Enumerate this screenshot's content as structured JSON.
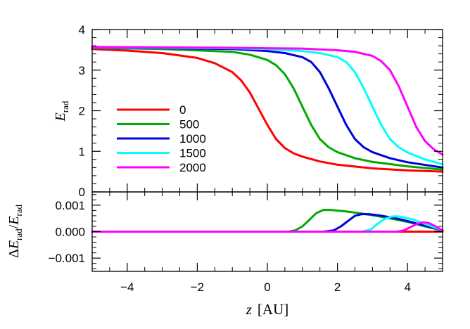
{
  "chart_data": [
    {
      "type": "line",
      "title": "",
      "xlabel": "",
      "ylabel": {
        "main": "E",
        "sub": "rad"
      },
      "xlim": [
        -5,
        5
      ],
      "ylim": [
        0,
        4
      ],
      "xticks": [
        "−4",
        "−2",
        "0",
        "2",
        "4"
      ],
      "xtick_values": [
        -4,
        -2,
        0,
        2,
        4
      ],
      "yticks": [
        "0",
        "1",
        "2",
        "3",
        "4"
      ],
      "ytick_values": [
        0,
        1,
        2,
        3,
        4
      ],
      "legend_position": "center-left",
      "grid": false,
      "series": [
        {
          "name": "0",
          "color": "#ff0000",
          "x": [
            -5,
            -4,
            -3,
            -2,
            -1.5,
            -1,
            -0.75,
            -0.5,
            -0.25,
            0,
            0.25,
            0.5,
            0.75,
            1,
            1.5,
            2,
            3,
            4,
            5
          ],
          "y": [
            3.52,
            3.48,
            3.42,
            3.3,
            3.17,
            2.95,
            2.75,
            2.45,
            2.05,
            1.65,
            1.3,
            1.08,
            0.95,
            0.87,
            0.75,
            0.67,
            0.58,
            0.53,
            0.5
          ]
        },
        {
          "name": "500",
          "color": "#00aa00",
          "x": [
            -5,
            -3,
            -1,
            -0.5,
            0,
            0.25,
            0.5,
            0.75,
            1,
            1.25,
            1.5,
            1.75,
            2,
            2.5,
            3,
            4,
            5
          ],
          "y": [
            3.55,
            3.52,
            3.45,
            3.38,
            3.25,
            3.12,
            2.9,
            2.55,
            2.1,
            1.65,
            1.3,
            1.1,
            0.98,
            0.83,
            0.74,
            0.63,
            0.55
          ]
        },
        {
          "name": "1000",
          "color": "#0000dd",
          "x": [
            -5,
            -3,
            -1,
            0,
            0.5,
            1,
            1.25,
            1.5,
            1.75,
            2,
            2.25,
            2.5,
            2.75,
            3,
            3.5,
            4,
            5
          ],
          "y": [
            3.55,
            3.54,
            3.52,
            3.47,
            3.42,
            3.32,
            3.2,
            2.95,
            2.55,
            2.1,
            1.65,
            1.3,
            1.1,
            0.98,
            0.83,
            0.73,
            0.6
          ]
        },
        {
          "name": "1500",
          "color": "#00ffff",
          "x": [
            -5,
            -3,
            -1,
            0,
            1,
            1.5,
            2,
            2.25,
            2.5,
            2.75,
            3,
            3.25,
            3.5,
            3.75,
            4,
            4.5,
            5
          ],
          "y": [
            3.56,
            3.55,
            3.54,
            3.52,
            3.47,
            3.42,
            3.32,
            3.2,
            2.95,
            2.55,
            2.1,
            1.65,
            1.3,
            1.1,
            0.97,
            0.8,
            0.68
          ]
        },
        {
          "name": "2000",
          "color": "#ff00ff",
          "x": [
            -5,
            -3,
            -1,
            0,
            1,
            2,
            2.5,
            3,
            3.25,
            3.5,
            3.75,
            4,
            4.25,
            4.5,
            4.75,
            5
          ],
          "y": [
            3.57,
            3.56,
            3.55,
            3.54,
            3.53,
            3.49,
            3.45,
            3.35,
            3.22,
            3.0,
            2.6,
            2.1,
            1.6,
            1.25,
            1.05,
            0.92
          ]
        }
      ]
    },
    {
      "type": "line",
      "title": "",
      "xlabel": {
        "main": "z",
        "unit": "[AU]"
      },
      "ylabel": {
        "delta": "Δ",
        "main": "E",
        "sub": "rad",
        "sep": "/",
        "main2": "E",
        "sub2": "rad"
      },
      "xlim": [
        -5,
        5
      ],
      "ylim": [
        -0.0015,
        0.0015
      ],
      "xticks": [
        "−4",
        "−2",
        "0",
        "2",
        "4"
      ],
      "xtick_values": [
        -4,
        -2,
        0,
        2,
        4
      ],
      "yticks": [
        "0.001",
        "0.000",
        "−0.001"
      ],
      "ytick_values": [
        0.001,
        0.0,
        -0.001
      ],
      "grid": false,
      "series": [
        {
          "name": "0",
          "color": "#ff0000",
          "x": [
            -5,
            5
          ],
          "y": [
            0.0,
            0.0
          ]
        },
        {
          "name": "500",
          "color": "#00aa00",
          "x": [
            -5,
            0,
            0.6,
            0.8,
            1.0,
            1.2,
            1.4,
            1.6,
            1.8,
            2.2,
            2.6,
            3.0,
            3.5,
            4.0,
            4.5,
            5.0
          ],
          "y": [
            0.0,
            0.0,
            0.0,
            5e-05,
            0.0002,
            0.00045,
            0.0007,
            0.00082,
            0.00082,
            0.00077,
            0.0007,
            0.00062,
            0.0005,
            0.00037,
            0.0002,
            5e-05
          ]
        },
        {
          "name": "1000",
          "color": "#0000dd",
          "x": [
            -5,
            1.6,
            1.9,
            2.1,
            2.3,
            2.5,
            2.7,
            2.9,
            3.2,
            3.6,
            4.0,
            4.5,
            5.0
          ],
          "y": [
            0.0,
            0.0,
            5e-05,
            0.0002,
            0.0004,
            0.0006,
            0.00066,
            0.00066,
            0.00061,
            0.00052,
            0.0004,
            0.00022,
            5e-05
          ]
        },
        {
          "name": "1500",
          "color": "#00ffff",
          "x": [
            -5,
            2.7,
            2.95,
            3.15,
            3.35,
            3.55,
            3.7,
            3.9,
            4.2,
            4.6,
            5.0
          ],
          "y": [
            0.0,
            0.0,
            8e-05,
            0.0003,
            0.00048,
            0.00057,
            0.00058,
            0.00054,
            0.00044,
            0.00024,
            5e-05
          ]
        },
        {
          "name": "2000",
          "color": "#ff00ff",
          "x": [
            -5,
            3.7,
            3.9,
            4.1,
            4.3,
            4.45,
            4.6,
            4.8,
            5.0
          ],
          "y": [
            0.0,
            0.0,
            5e-05,
            0.00018,
            0.00031,
            0.00035,
            0.00033,
            0.0002,
            5e-05
          ]
        }
      ]
    }
  ]
}
